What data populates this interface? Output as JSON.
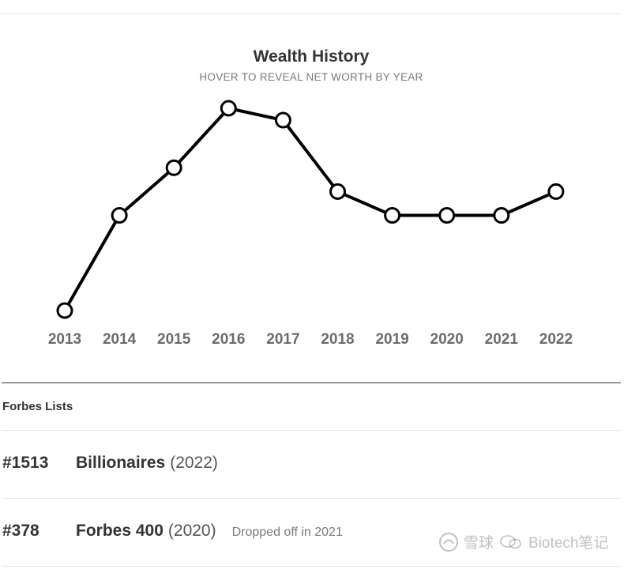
{
  "chart": {
    "title": "Wealth History",
    "subtitle": "HOVER TO REVEAL NET WORTH BY YEAR"
  },
  "chart_data": {
    "type": "line",
    "title": "Wealth History",
    "subtitle": "HOVER TO REVEAL NET WORTH BY YEAR",
    "x": [
      "2013",
      "2014",
      "2015",
      "2016",
      "2017",
      "2018",
      "2019",
      "2020",
      "2021",
      "2022"
    ],
    "series": [
      {
        "values": [
          1.0,
          2.6,
          3.4,
          4.4,
          4.2,
          3.0,
          2.6,
          2.6,
          2.6,
          3.0
        ]
      }
    ],
    "ylim": [
      1.0,
      4.4
    ],
    "grid": false,
    "legend": "none",
    "line_color": "#000000",
    "marker_fill": "#ffffff"
  },
  "forbes_lists": {
    "header": "Forbes Lists",
    "rows": [
      {
        "rank": "#1513",
        "name": "Billionaires",
        "year": "(2022)",
        "note": ""
      },
      {
        "rank": "#378",
        "name": "Forbes 400",
        "year": "(2020)",
        "note": "Dropped off in 2021"
      }
    ]
  },
  "watermark": {
    "platform": "雪球",
    "account": "Biotech笔记"
  }
}
